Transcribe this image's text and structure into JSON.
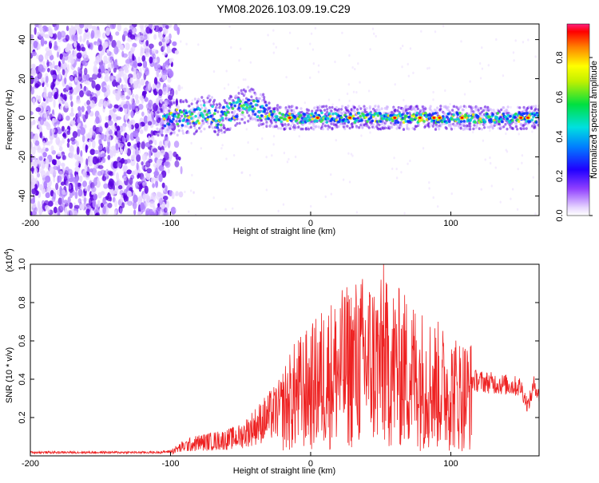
{
  "title": "YM08.2026.103.09.19.C29",
  "chart_data": [
    {
      "type": "heatmap",
      "xlabel": "Height of straight line (km)",
      "ylabel": "Frequency (Hz)",
      "xlim": [
        -200,
        163
      ],
      "ylim": [
        -50,
        48
      ],
      "x_ticks": [
        -200,
        -100,
        0,
        100
      ],
      "x_tick_labels": [
        "-200",
        "-100",
        "0",
        "100"
      ],
      "y_ticks": [
        -40,
        -20,
        0,
        20,
        40
      ],
      "y_tick_labels": [
        "-40",
        "-20",
        "0",
        "20",
        "40"
      ],
      "colorbar": {
        "label": "Normalized spectral amplitude",
        "range": [
          0,
          0.97
        ],
        "ticks": [
          0.0,
          0.2,
          0.4,
          0.6,
          0.8
        ],
        "tick_labels": [
          "0.0",
          "0.2",
          "0.4",
          "0.6",
          "0.8"
        ]
      },
      "colors": {
        "low": "#e6d5ff",
        "mid": "#5a00e0",
        "blue": "#0030ff",
        "cyan": "#00d0d0",
        "green": "#30e040",
        "yellow": "#f0f000",
        "red": "#ff0000"
      },
      "ridge": [
        [
          -100,
          0
        ],
        [
          -90,
          0
        ],
        [
          -80,
          1
        ],
        [
          -72,
          3
        ],
        [
          -67,
          -1
        ],
        [
          -62,
          1
        ],
        [
          -55,
          4
        ],
        [
          -48,
          6
        ],
        [
          -42,
          8
        ],
        [
          -38,
          5
        ],
        [
          -33,
          3
        ],
        [
          -28,
          1
        ],
        [
          -20,
          0
        ],
        [
          0,
          0
        ],
        [
          50,
          0
        ],
        [
          100,
          0
        ],
        [
          163,
          0
        ]
      ]
    },
    {
      "type": "line",
      "xlabel": "Height of straight line (km)",
      "ylabel": "SNR (10 * v/v)",
      "y_multiplier": "(x10",
      "y_exponent": "4",
      "y_multiplier_close": ")",
      "xlim": [
        -200,
        163
      ],
      "ylim": [
        0,
        1.0
      ],
      "x_ticks": [
        -200,
        -100,
        0,
        100
      ],
      "x_tick_labels": [
        "-200",
        "-100",
        "0",
        "100"
      ],
      "y_ticks": [
        0.2,
        0.4,
        0.6,
        0.8,
        1.0
      ],
      "y_tick_labels": [
        "0.2",
        "0.4",
        "0.6",
        "0.8",
        "1.0"
      ],
      "line_color": "#ee2222",
      "envelope": [
        [
          -200,
          0.02
        ],
        [
          -110,
          0.02
        ],
        [
          -100,
          0.025
        ],
        [
          -90,
          0.06
        ],
        [
          -80,
          0.08
        ],
        [
          -70,
          0.09
        ],
        [
          -60,
          0.1
        ],
        [
          -50,
          0.12
        ],
        [
          -40,
          0.18
        ],
        [
          -30,
          0.24
        ],
        [
          -20,
          0.3
        ],
        [
          -10,
          0.4
        ],
        [
          0,
          0.44
        ],
        [
          10,
          0.52
        ],
        [
          20,
          0.55
        ],
        [
          30,
          0.6
        ],
        [
          40,
          0.62
        ],
        [
          50,
          0.6
        ],
        [
          60,
          0.58
        ],
        [
          70,
          0.55
        ],
        [
          80,
          0.5
        ],
        [
          90,
          0.46
        ],
        [
          100,
          0.42
        ],
        [
          110,
          0.4
        ],
        [
          120,
          0.39
        ],
        [
          130,
          0.38
        ],
        [
          140,
          0.37
        ],
        [
          150,
          0.36
        ],
        [
          155,
          0.26
        ],
        [
          160,
          0.38
        ],
        [
          163,
          0.3
        ]
      ],
      "peak": {
        "x": 52,
        "y": 1.0
      }
    }
  ]
}
